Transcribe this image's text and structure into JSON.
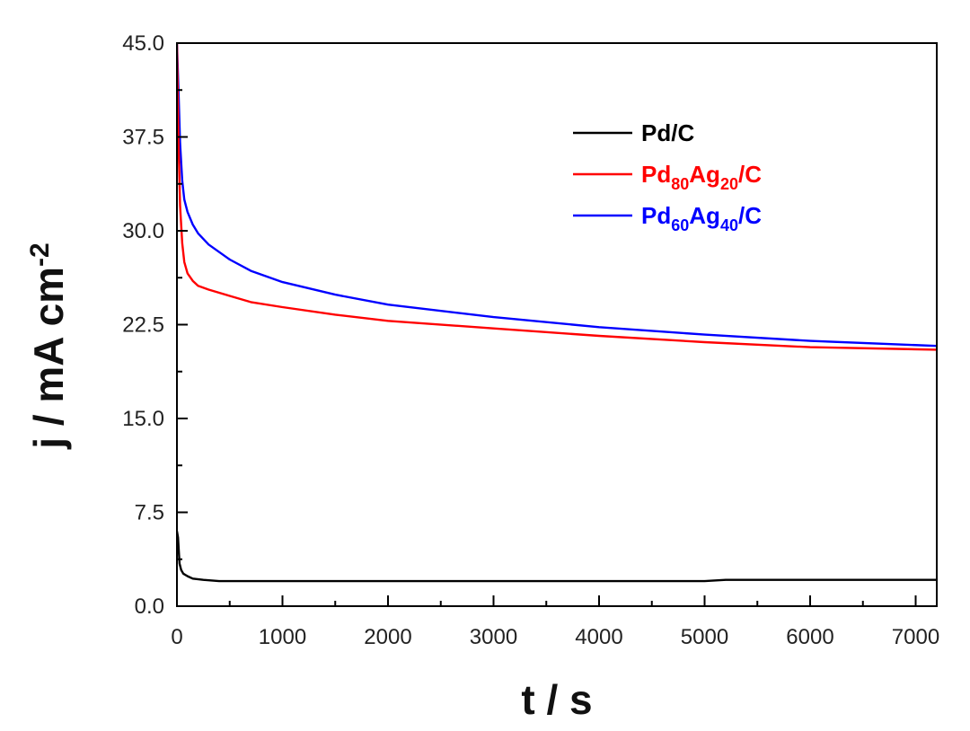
{
  "chart_data": {
    "type": "line",
    "title": "",
    "xlabel": "t / s",
    "ylabel_main": "j / mA cm",
    "ylabel_sup": "-2",
    "xlim": [
      0,
      7200
    ],
    "ylim": [
      0,
      45
    ],
    "grid": false,
    "legend_position": "top-right",
    "x_ticks": [
      0,
      1000,
      2000,
      3000,
      4000,
      5000,
      6000,
      7000
    ],
    "x_tick_labels": [
      "0",
      "1000",
      "2000",
      "3000",
      "4000",
      "5000",
      "6000",
      "7000"
    ],
    "y_ticks": [
      0,
      7.5,
      15,
      22.5,
      30,
      37.5,
      45
    ],
    "y_tick_labels": [
      "0.0",
      "7.5",
      "15.0",
      "22.5",
      "30.0",
      "37.5",
      "45.0"
    ],
    "series": [
      {
        "name": "Pd/C",
        "legend_parts": [
          {
            "t": "Pd/C",
            "sub": false
          }
        ],
        "color": "#000000",
        "x": [
          0,
          10,
          25,
          40,
          60,
          100,
          150,
          250,
          400,
          1000,
          3000,
          5000,
          5200,
          5400,
          5500,
          7200
        ],
        "y": [
          6,
          5.5,
          3.4,
          2.9,
          2.6,
          2.4,
          2.2,
          2.1,
          2.0,
          2.0,
          2.0,
          2.0,
          2.1,
          2.1,
          2.1,
          2.1
        ]
      },
      {
        "name": "Pd80Ag20/C",
        "legend_parts": [
          {
            "t": "Pd",
            "sub": false
          },
          {
            "t": "80",
            "sub": true
          },
          {
            "t": "Ag",
            "sub": false
          },
          {
            "t": "20",
            "sub": true
          },
          {
            "t": "/C",
            "sub": false
          }
        ],
        "color": "#ff0000",
        "x": [
          0,
          15,
          30,
          50,
          70,
          100,
          150,
          200,
          300,
          500,
          700,
          1000,
          1500,
          2000,
          3000,
          4000,
          5000,
          6000,
          7200
        ],
        "y": [
          45,
          37,
          32,
          29,
          27.5,
          26.6,
          26.0,
          25.6,
          25.3,
          24.8,
          24.3,
          23.9,
          23.3,
          22.8,
          22.2,
          21.6,
          21.1,
          20.7,
          20.5
        ]
      },
      {
        "name": "Pd60Ag40/C",
        "legend_parts": [
          {
            "t": "Pd",
            "sub": false
          },
          {
            "t": "60",
            "sub": true
          },
          {
            "t": "Ag",
            "sub": false
          },
          {
            "t": "40",
            "sub": true
          },
          {
            "t": "/C",
            "sub": false
          }
        ],
        "color": "#0000ff",
        "x": [
          0,
          15,
          30,
          50,
          70,
          100,
          150,
          200,
          300,
          500,
          700,
          1000,
          1500,
          2000,
          3000,
          4000,
          5000,
          6000,
          7200
        ],
        "y": [
          45,
          41,
          37,
          34,
          32.5,
          31.5,
          30.5,
          29.8,
          28.9,
          27.7,
          26.8,
          25.9,
          24.9,
          24.1,
          23.1,
          22.3,
          21.7,
          21.2,
          20.8
        ]
      }
    ]
  }
}
